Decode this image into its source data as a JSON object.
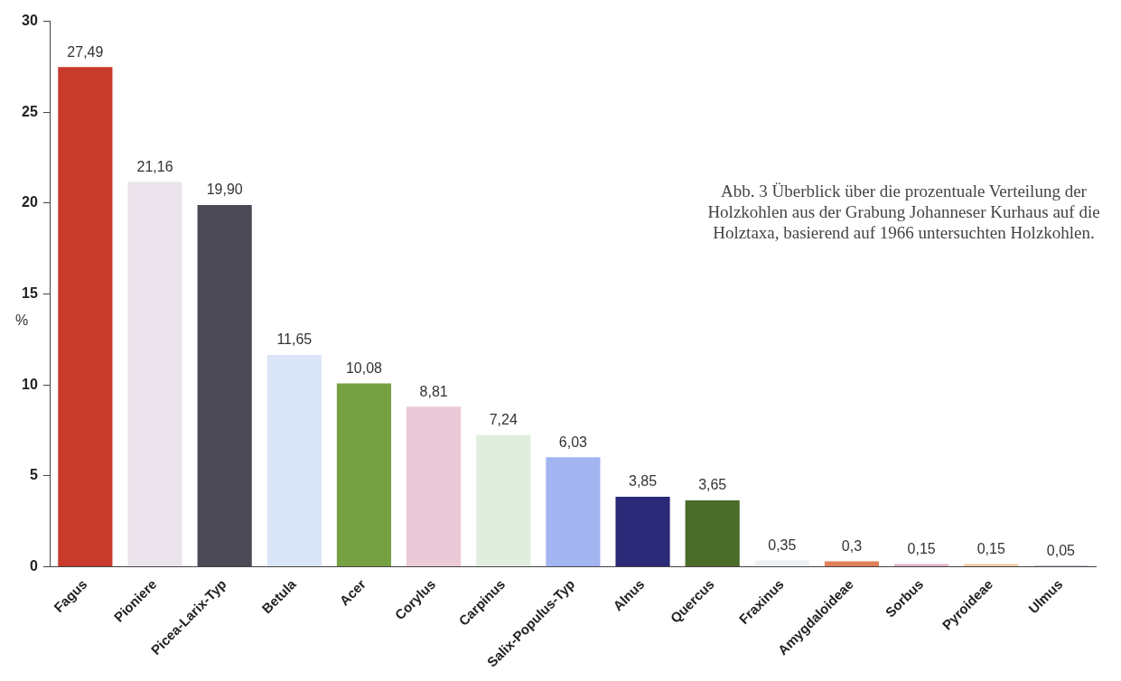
{
  "chart_data": {
    "type": "bar",
    "ylabel": "%",
    "categories": [
      "Fagus",
      "Pioniere",
      "Picea-Larix-Typ",
      "Betula",
      "Acer",
      "Corylus",
      "Carpinus",
      "Salix-Populus-Typ",
      "Alnus",
      "Quercus",
      "Fraxinus",
      "Amygdaloideae",
      "Sorbus",
      "Pyroideae",
      "Ulmus"
    ],
    "values": [
      27.49,
      21.16,
      19.9,
      11.65,
      10.08,
      8.81,
      7.24,
      6.03,
      3.85,
      3.65,
      0.35,
      0.3,
      0.15,
      0.15,
      0.05
    ],
    "value_labels": [
      "27,49",
      "21,16",
      "19,90",
      "11,65",
      "10,08",
      "8,81",
      "7,24",
      "6,03",
      "3,85",
      "3,65",
      "0,35",
      "0,3",
      "0,15",
      "0,15",
      "0,05"
    ],
    "colors": [
      "#c83a2c",
      "#ebe4ec",
      "#4b4a56",
      "#dbe5f8",
      "#76a042",
      "#ecc9d7",
      "#e0eedd",
      "#a3b5f0",
      "#2b2a78",
      "#4b6b2b",
      "#eef1f4",
      "#e0805a",
      "#e0b2c8",
      "#f0c9a2",
      "#8391b2"
    ],
    "ylim": [
      0,
      30
    ],
    "yticks": [
      0,
      5,
      10,
      15,
      20,
      25,
      30
    ],
    "grid": false,
    "legend": false,
    "annotations": [
      "Abb. 3  Überblick über die prozentuale Verteilung der Holzkohlen aus der Grabung Johanneser Kurhaus auf die Holztaxa, basierend auf 1966 untersuchten Holzkohlen."
    ]
  }
}
